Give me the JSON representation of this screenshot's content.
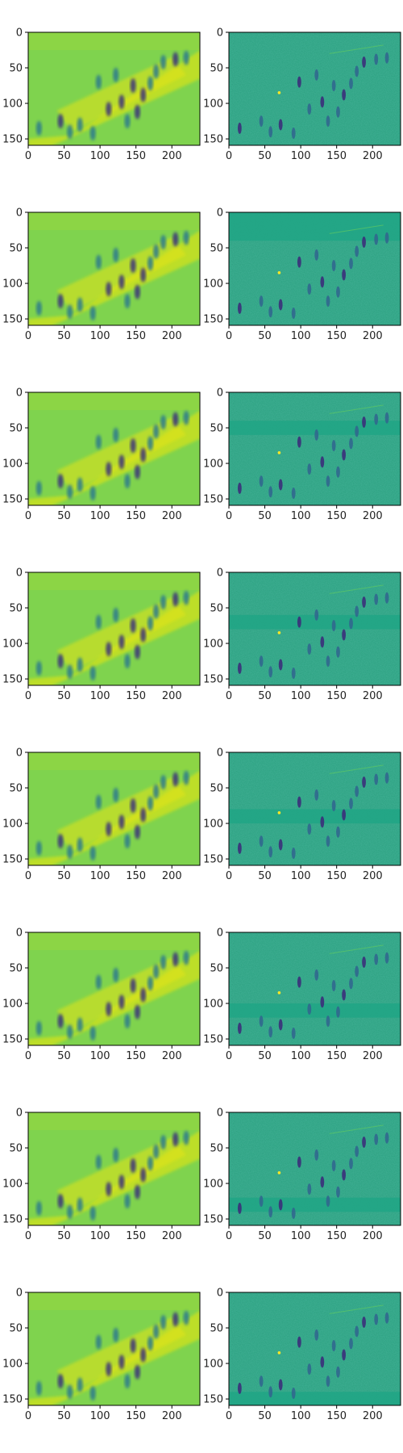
{
  "chart_data": {
    "type": "heatmap",
    "layout": {
      "rows": 8,
      "cols": 2
    },
    "colormap": "viridis",
    "image_extent": {
      "x": [
        0,
        239
      ],
      "y": [
        159,
        0
      ]
    },
    "xticks": [
      0,
      50,
      100,
      150,
      200
    ],
    "yticks": [
      0,
      50,
      100,
      150
    ],
    "panels": [
      {
        "row": 0,
        "col": 0,
        "kind": "feature-map"
      },
      {
        "row": 0,
        "col": 1,
        "kind": "residual",
        "band": null
      },
      {
        "row": 1,
        "col": 0,
        "kind": "feature-map"
      },
      {
        "row": 1,
        "col": 1,
        "kind": "residual",
        "band": [
          0,
          40
        ]
      },
      {
        "row": 2,
        "col": 0,
        "kind": "feature-map"
      },
      {
        "row": 2,
        "col": 1,
        "kind": "residual",
        "band": [
          40,
          60
        ]
      },
      {
        "row": 3,
        "col": 0,
        "kind": "feature-map"
      },
      {
        "row": 3,
        "col": 1,
        "kind": "residual",
        "band": [
          60,
          80
        ]
      },
      {
        "row": 4,
        "col": 0,
        "kind": "feature-map"
      },
      {
        "row": 4,
        "col": 1,
        "kind": "residual",
        "band": [
          80,
          100
        ]
      },
      {
        "row": 5,
        "col": 0,
        "kind": "feature-map"
      },
      {
        "row": 5,
        "col": 1,
        "kind": "residual",
        "band": [
          100,
          120
        ]
      },
      {
        "row": 6,
        "col": 0,
        "kind": "feature-map"
      },
      {
        "row": 6,
        "col": 1,
        "kind": "residual",
        "band": [
          120,
          140
        ]
      },
      {
        "row": 7,
        "col": 0,
        "kind": "feature-map"
      },
      {
        "row": 7,
        "col": 1,
        "kind": "residual",
        "band": [
          140,
          160
        ]
      }
    ]
  }
}
